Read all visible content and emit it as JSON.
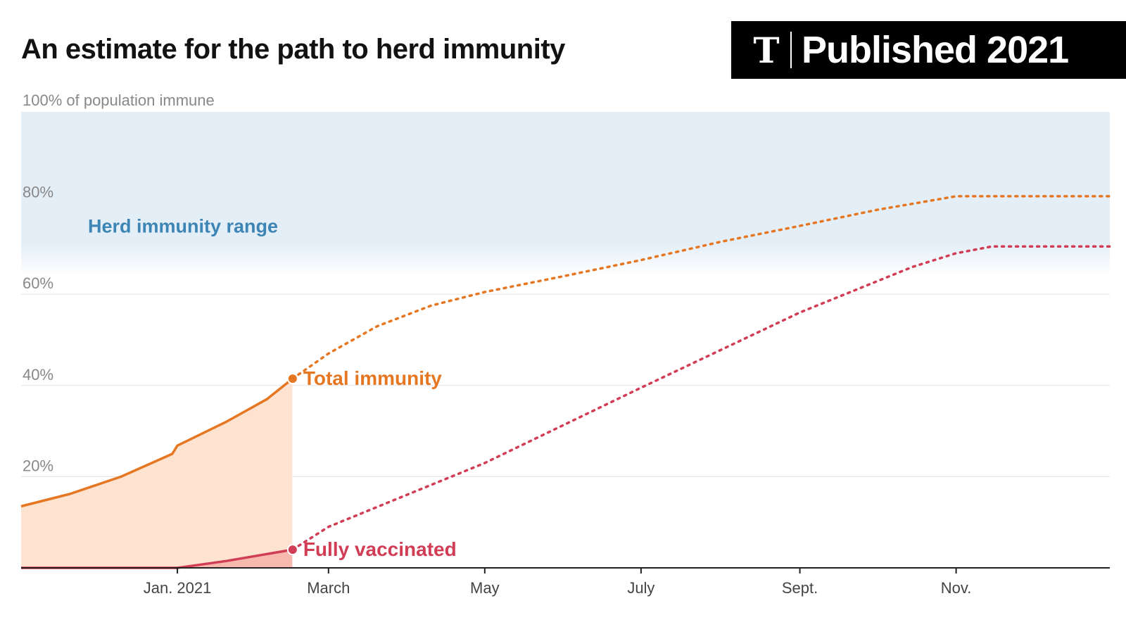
{
  "header": {
    "title": "An estimate for the path to herd immunity",
    "badge_text": "Published 2021",
    "badge_logo": "nyt-t-logo-icon"
  },
  "colors": {
    "total": "#e67722",
    "total_fill": "#fde3d0",
    "vacc": "#d23d56",
    "vacc_fill": "#f7b9ae",
    "herd_band": "#e4eef7",
    "herd_label": "#3d85b4",
    "grid": "#e6e6e6",
    "axis_text": "#888888"
  },
  "chart_data": {
    "type": "line",
    "ylabel": "100% of population immune",
    "yticks": [
      {
        "value": 20,
        "label": "20%"
      },
      {
        "value": 40,
        "label": "40%"
      },
      {
        "value": 60,
        "label": "60%"
      },
      {
        "value": 80,
        "label": "80%"
      }
    ],
    "ylim": [
      0,
      100
    ],
    "xlim": [
      "2020-11-01",
      "2021-12-31"
    ],
    "xticks": [
      {
        "date": "2021-01-01",
        "label": "Jan. 2021"
      },
      {
        "date": "2021-03-01",
        "label": "March"
      },
      {
        "date": "2021-05-01",
        "label": "May"
      },
      {
        "date": "2021-07-01",
        "label": "July"
      },
      {
        "date": "2021-09-01",
        "label": "Sept."
      },
      {
        "date": "2021-11-01",
        "label": "Nov."
      }
    ],
    "band": {
      "label": "Herd immunity range",
      "from": 70,
      "to": 100
    },
    "split_date": "2021-02-15",
    "series": [
      {
        "name": "Total immunity",
        "key": "total",
        "observed": [
          {
            "date": "2020-11-01",
            "value": 13.5
          },
          {
            "date": "2020-11-20",
            "value": 16.2
          },
          {
            "date": "2020-12-10",
            "value": 20.0
          },
          {
            "date": "2020-12-30",
            "value": 25.0
          },
          {
            "date": "2021-01-01",
            "value": 26.8
          },
          {
            "date": "2021-01-20",
            "value": 32.0
          },
          {
            "date": "2021-02-05",
            "value": 37.0
          },
          {
            "date": "2021-02-15",
            "value": 41.5
          }
        ],
        "projected": [
          {
            "date": "2021-02-15",
            "value": 41.5
          },
          {
            "date": "2021-03-01",
            "value": 47.0
          },
          {
            "date": "2021-03-20",
            "value": 53.0
          },
          {
            "date": "2021-04-10",
            "value": 57.5
          },
          {
            "date": "2021-05-01",
            "value": 60.5
          },
          {
            "date": "2021-06-01",
            "value": 64.0
          },
          {
            "date": "2021-07-01",
            "value": 67.5
          },
          {
            "date": "2021-08-01",
            "value": 71.5
          },
          {
            "date": "2021-09-01",
            "value": 75.0
          },
          {
            "date": "2021-10-01",
            "value": 78.5
          },
          {
            "date": "2021-11-01",
            "value": 81.5
          },
          {
            "date": "2021-12-31",
            "value": 81.5
          }
        ]
      },
      {
        "name": "Fully vaccinated",
        "key": "vacc",
        "observed": [
          {
            "date": "2020-11-01",
            "value": 0
          },
          {
            "date": "2021-01-01",
            "value": 0
          },
          {
            "date": "2021-01-20",
            "value": 1.5
          },
          {
            "date": "2021-02-15",
            "value": 4.0
          }
        ],
        "projected": [
          {
            "date": "2021-02-15",
            "value": 4.0
          },
          {
            "date": "2021-03-01",
            "value": 9.0
          },
          {
            "date": "2021-05-01",
            "value": 23.0
          },
          {
            "date": "2021-07-01",
            "value": 39.5
          },
          {
            "date": "2021-09-01",
            "value": 56.0
          },
          {
            "date": "2021-10-15",
            "value": 66.0
          },
          {
            "date": "2021-11-01",
            "value": 69.0
          },
          {
            "date": "2021-11-15",
            "value": 70.5
          },
          {
            "date": "2021-12-31",
            "value": 70.5
          }
        ]
      }
    ]
  }
}
